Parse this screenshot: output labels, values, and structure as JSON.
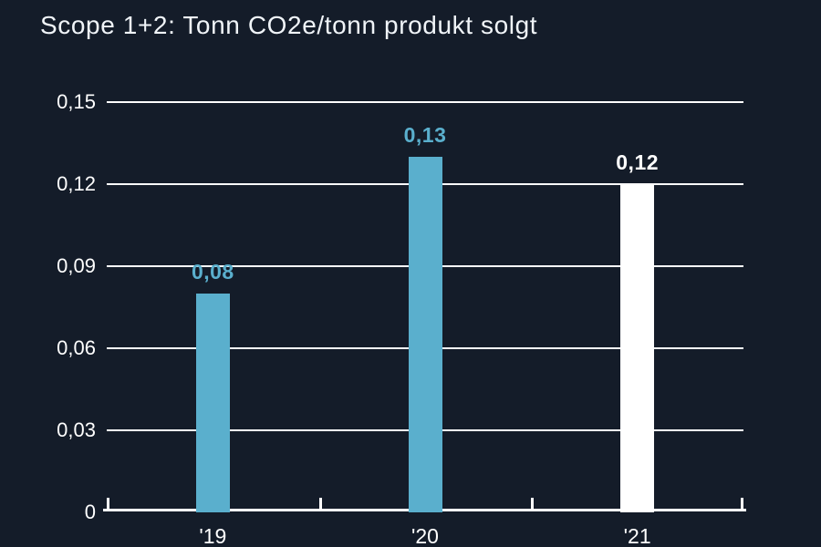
{
  "page": {
    "background_color": "#141c29",
    "title_color": "#f0f4f8",
    "text_color": "#ffffff",
    "grid_color": "#ffffff",
    "axis_color": "#ffffff"
  },
  "chart_data": {
    "type": "bar",
    "title": "Scope 1+2: Tonn CO2e/tonn produkt solgt",
    "categories": [
      "'19",
      "'20",
      "'21"
    ],
    "values": [
      0.08,
      0.13,
      0.12
    ],
    "value_labels": [
      "0,08",
      "0,13",
      "0,12"
    ],
    "bar_colors": [
      "#5aafcd",
      "#5aafcd",
      "#ffffff"
    ],
    "value_label_colors": [
      "#5aafcd",
      "#5aafcd",
      "#ffffff"
    ],
    "xlabel": "",
    "ylabel": "",
    "ylim": [
      0,
      0.15
    ],
    "yticks": [
      0,
      0.03,
      0.06,
      0.09,
      0.12,
      0.15
    ],
    "ytick_labels": [
      "0",
      "0,03",
      "0,06",
      "0,09",
      "0,12",
      "0,15"
    ],
    "grid": true,
    "legend": false,
    "decimal_separator": ","
  }
}
